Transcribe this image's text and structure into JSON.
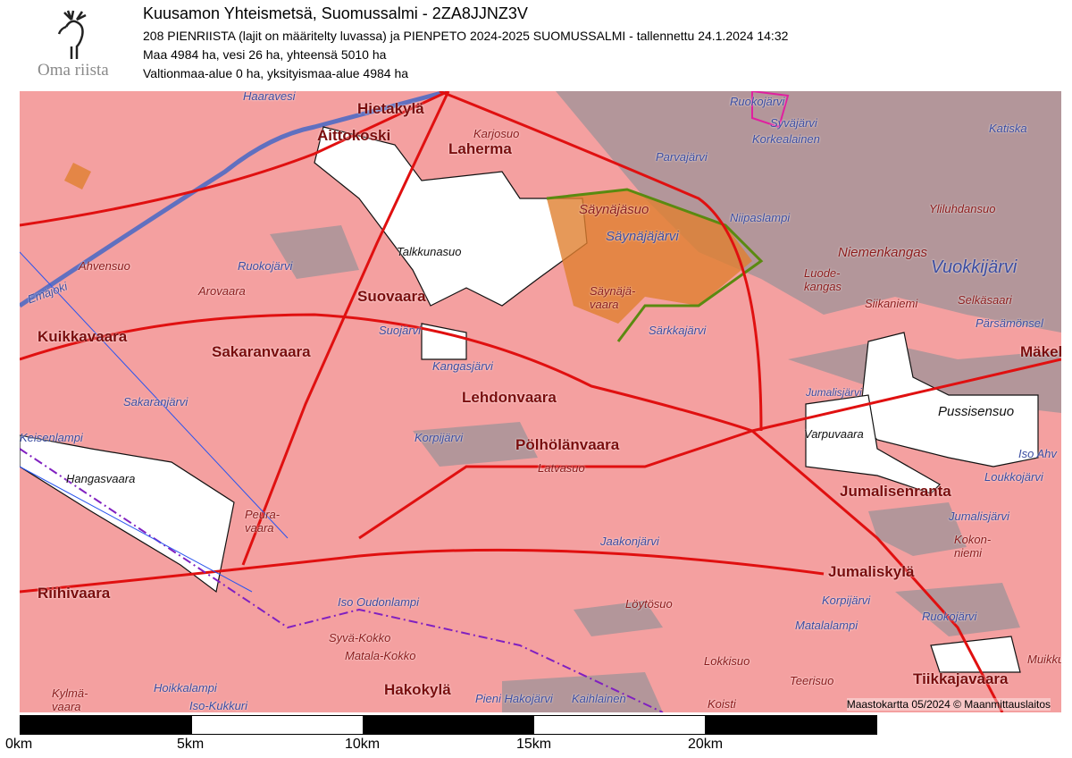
{
  "header": {
    "title": "Kuusamon Yhteismetsä, Suomussalmi - 2ZA8JJNZ3V",
    "permit_line": "208 PIENRIISTA (lajit on määritelty luvassa)  ja PIENPETO 2024-2025 SUOMUSSALMI - tallennettu 24.1.2024 14:32",
    "area_line": "Maa 4984 ha, vesi 26 ha, yhteensä 5010 ha",
    "ownership_line": "Valtionmaa-alue 0 ha, yksityismaa-alue 4984 ha"
  },
  "logo": {
    "text": "Oma riista",
    "icon": "moose-logo-icon"
  },
  "map": {
    "colors": {
      "land": "#f4a0a0",
      "water": "#b8969a",
      "roads": "#e01010",
      "hunting_area": "#ffffff",
      "protected": "#5a8a10",
      "restricted": "#e020a0"
    },
    "places_major": [
      "Hietakylä",
      "Aittokoski",
      "Laherma",
      "Suovaara",
      "Kuikkavaara",
      "Sakaranvaara",
      "Lehdonvaara",
      "Pölhölänvaara",
      "Jumalisenranta",
      "Jumaliskylä",
      "Riihivaara",
      "Hakokylä",
      "Tiikkajavaara",
      "Mäkelä"
    ],
    "places_minor": [
      "Karjosuo",
      "Ruokojärvi",
      "Syväjärvi",
      "Korkealainen",
      "Katiska",
      "Parvajärvi",
      "Säynäjäsuo",
      "Säynäjäjärvi",
      "Niipaslampi",
      "Yliluhdansuo",
      "Niemenkangas",
      "Vuokkijärvi",
      "Luode-kangas",
      "Siikaniemi",
      "Selkäsaari",
      "Pärsämönsel",
      "Ahvensuo",
      "Ruokojärvi",
      "Arovaara",
      "Emäjoki",
      "Talkkunasuo",
      "Säynäjä-vaara",
      "Särkkajärvi",
      "Suojärvi",
      "Kangasjärvi",
      "Jumalisjärvi",
      "Pussisensuo",
      "Varpuvaara",
      "Iso Ahv",
      "Loukkojärvi",
      "Jumalisjärvi",
      "Kokon-niemi",
      "Sakaranjärvi",
      "Hangasvaara",
      "Korpijärvi",
      "Latvasuo",
      "Peura-vaara",
      "Jaakonjärvi",
      "Iso Oudonlampi",
      "Syvä-Kokko",
      "Matala-Kokko",
      "Löytösuo",
      "Korpijärvi",
      "Matalalampi",
      "Ruokojärvi",
      "Lokkisuo",
      "Teerisuo",
      "Koisti",
      "Pieni Hakojärvi",
      "Kaihlainen",
      "Hoikkalampi",
      "Iso-Kukkuri",
      "Kylmä-vaara",
      "Muikku",
      "Haaravesi",
      "Keisenlampi"
    ],
    "credit": "Maastokartta 05/2024 © Maanmittauslaitos"
  },
  "scalebar": {
    "labels": [
      "0km",
      "5km",
      "10km",
      "15km",
      "20km"
    ]
  }
}
